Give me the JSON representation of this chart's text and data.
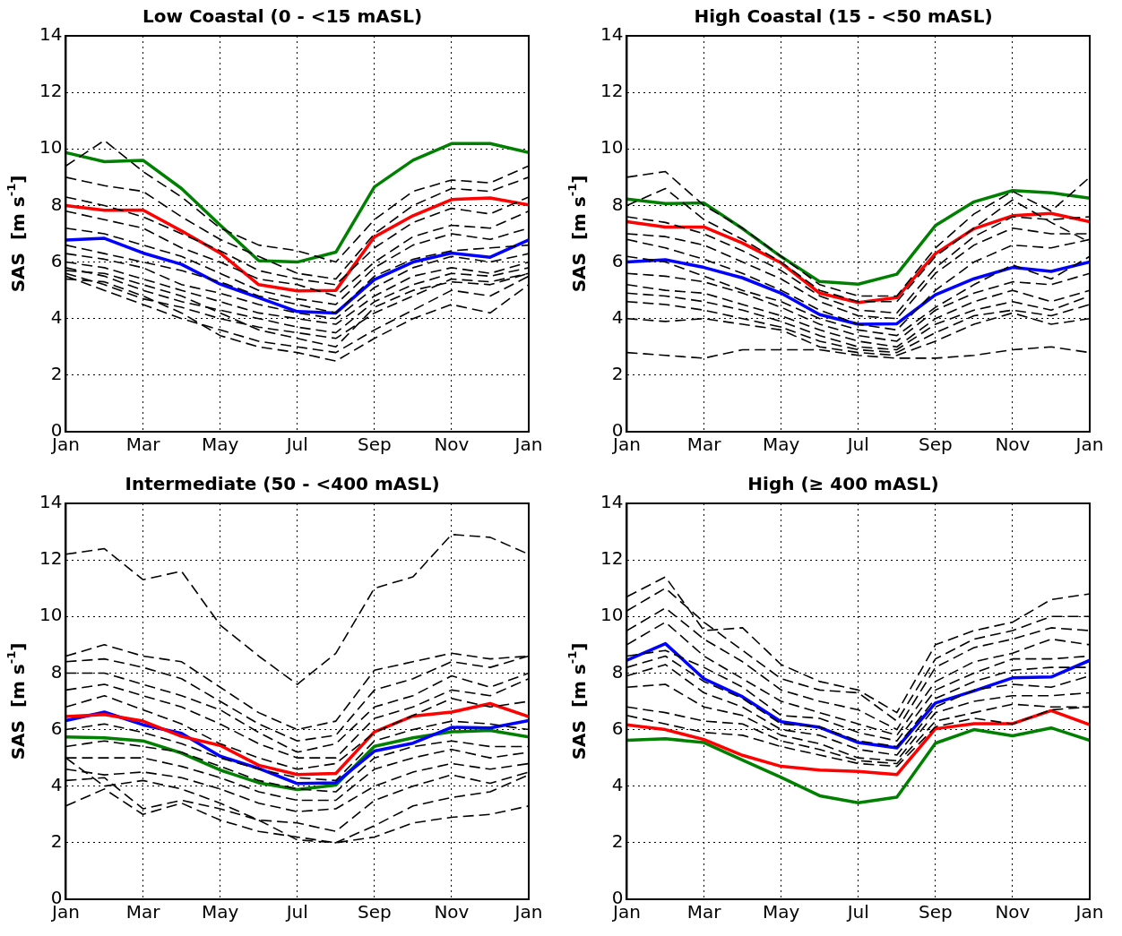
{
  "chart_data": [
    {
      "type": "line",
      "title": "Low Coastal (0 - <15 mASL)",
      "ylabel": "SAS  [m s$^{-1}$]",
      "categories": [
        "Jan",
        null,
        "Mar",
        null,
        "May",
        null,
        "Jul",
        null,
        "Sep",
        null,
        "Nov",
        null,
        "Jan"
      ],
      "ylim": [
        0,
        14
      ],
      "yticks": [
        0,
        2,
        4,
        6,
        8,
        10,
        12,
        14
      ],
      "grid": true,
      "legend": false,
      "series": [
        {
          "color": "#000000",
          "line_style": "dashed",
          "values": [
            9.4,
            10.3,
            9.2,
            8.3,
            7.2,
            6.6,
            6.4,
            6.0,
            7.5,
            8.5,
            8.9,
            8.8,
            9.4
          ]
        },
        {
          "color": "#000000",
          "line_style": "dashed",
          "values": [
            9.0,
            8.7,
            8.5,
            7.6,
            6.8,
            6.2,
            5.6,
            5.4,
            7.0,
            8.0,
            8.6,
            8.5,
            9.0
          ]
        },
        {
          "color": "#000000",
          "line_style": "dashed",
          "values": [
            8.3,
            8.0,
            7.6,
            7.0,
            6.4,
            5.7,
            5.4,
            5.2,
            6.5,
            7.4,
            7.9,
            7.7,
            8.3
          ]
        },
        {
          "color": "#000000",
          "line_style": "dashed",
          "values": [
            7.8,
            7.5,
            7.2,
            6.5,
            6.0,
            5.4,
            5.2,
            4.8,
            6.0,
            6.9,
            7.3,
            7.2,
            7.8
          ]
        },
        {
          "color": "#000000",
          "line_style": "dashed",
          "values": [
            7.2,
            7.0,
            6.6,
            6.2,
            5.6,
            5.0,
            4.7,
            4.5,
            5.8,
            6.6,
            7.0,
            6.8,
            7.2
          ]
        },
        {
          "color": "#000000",
          "line_style": "dashed",
          "values": [
            6.6,
            6.3,
            6.0,
            5.7,
            5.3,
            4.8,
            4.5,
            4.2,
            5.5,
            6.1,
            6.4,
            6.5,
            6.6
          ]
        },
        {
          "color": "#000000",
          "line_style": "dashed",
          "values": [
            6.3,
            6.1,
            5.8,
            5.2,
            4.9,
            4.5,
            4.2,
            4.0,
            5.1,
            5.8,
            6.2,
            6.0,
            6.3
          ]
        },
        {
          "color": "#000000",
          "line_style": "dashed",
          "values": [
            6.0,
            5.8,
            5.4,
            5.0,
            4.6,
            4.2,
            4.0,
            3.8,
            4.8,
            5.5,
            5.8,
            5.6,
            6.0
          ]
        },
        {
          "color": "#000000",
          "line_style": "dashed",
          "values": [
            5.8,
            5.5,
            5.0,
            4.6,
            4.3,
            4.0,
            3.7,
            3.5,
            4.6,
            5.2,
            5.6,
            5.5,
            5.8
          ]
        },
        {
          "color": "#000000",
          "line_style": "dashed",
          "values": [
            5.6,
            5.2,
            4.7,
            4.4,
            4.0,
            3.7,
            3.5,
            3.3,
            4.2,
            4.8,
            5.4,
            5.3,
            5.6
          ]
        },
        {
          "color": "#000000",
          "line_style": "dashed",
          "values": [
            5.5,
            5.0,
            4.5,
            4.0,
            3.6,
            3.2,
            3.0,
            2.8,
            3.6,
            4.3,
            5.0,
            4.8,
            5.5
          ]
        },
        {
          "color": "#000000",
          "line_style": "dashed",
          "values": [
            5.4,
            5.3,
            4.8,
            4.2,
            3.4,
            3.0,
            2.8,
            2.5,
            3.3,
            4.0,
            4.5,
            4.2,
            5.2
          ]
        },
        {
          "color": "#000000",
          "line_style": "dashed",
          "values": [
            5.7,
            5.6,
            5.2,
            4.8,
            4.2,
            3.6,
            3.3,
            3.0,
            4.4,
            5.0,
            5.3,
            5.2,
            5.6
          ]
        },
        {
          "color": "#008000",
          "line_style": "solid",
          "values": [
            9.87,
            9.55,
            9.6,
            8.6,
            7.31,
            6.05,
            6.0,
            6.35,
            8.66,
            9.6,
            10.19,
            10.19,
            9.87
          ]
        },
        {
          "color": "#ff0000",
          "line_style": "solid",
          "values": [
            8.0,
            7.83,
            7.84,
            7.1,
            6.32,
            5.2,
            4.98,
            5.0,
            6.89,
            7.64,
            8.21,
            8.27,
            8.02
          ]
        },
        {
          "color": "#0000ff",
          "line_style": "solid",
          "values": [
            6.78,
            6.84,
            6.32,
            5.92,
            5.22,
            4.74,
            4.25,
            4.2,
            5.38,
            6.0,
            6.32,
            6.17,
            6.78
          ]
        }
      ]
    },
    {
      "type": "line",
      "title": "High Coastal (15 - <50 mASL)",
      "ylabel": "SAS  [m s$^{-1}$]",
      "categories": [
        "Jan",
        null,
        "Mar",
        null,
        "May",
        null,
        "Jul",
        null,
        "Sep",
        null,
        "Nov",
        null,
        "Jan"
      ],
      "ylim": [
        0,
        14
      ],
      "yticks": [
        0,
        2,
        4,
        6,
        8,
        10,
        12,
        14
      ],
      "grid": true,
      "legend": false,
      "series": [
        {
          "color": "#000000",
          "line_style": "dashed",
          "values": [
            9.0,
            9.2,
            8.0,
            7.2,
            6.2,
            5.2,
            4.8,
            4.8,
            6.5,
            7.7,
            8.5,
            7.8,
            9.0
          ]
        },
        {
          "color": "#000000",
          "line_style": "dashed",
          "values": [
            8.0,
            8.6,
            7.5,
            6.8,
            6.0,
            5.0,
            4.6,
            4.6,
            6.2,
            7.2,
            8.2,
            7.4,
            6.7
          ]
        },
        {
          "color": "#000000",
          "line_style": "dashed",
          "values": [
            7.6,
            7.4,
            7.0,
            6.4,
            5.7,
            4.8,
            4.3,
            4.2,
            5.8,
            6.9,
            7.6,
            7.5,
            7.6
          ]
        },
        {
          "color": "#000000",
          "line_style": "dashed",
          "values": [
            7.0,
            6.9,
            6.6,
            6.0,
            5.4,
            4.6,
            4.1,
            4.0,
            5.6,
            6.6,
            7.2,
            7.0,
            7.0
          ]
        },
        {
          "color": "#000000",
          "line_style": "dashed",
          "values": [
            6.8,
            6.5,
            6.1,
            5.6,
            5.0,
            4.3,
            3.8,
            3.6,
            5.0,
            6.0,
            6.6,
            6.5,
            6.8
          ]
        },
        {
          "color": "#000000",
          "line_style": "dashed",
          "values": [
            6.2,
            6.0,
            5.5,
            5.0,
            4.6,
            4.0,
            3.6,
            3.4,
            4.4,
            5.2,
            5.9,
            5.4,
            6.2
          ]
        },
        {
          "color": "#000000",
          "line_style": "dashed",
          "values": [
            5.6,
            5.5,
            5.3,
            4.9,
            4.4,
            3.8,
            3.4,
            3.2,
            4.3,
            4.9,
            5.3,
            5.2,
            5.6
          ]
        },
        {
          "color": "#000000",
          "line_style": "dashed",
          "values": [
            5.2,
            5.0,
            4.9,
            4.5,
            4.1,
            3.6,
            3.2,
            3.0,
            4.0,
            4.6,
            5.0,
            4.6,
            5.0
          ]
        },
        {
          "color": "#000000",
          "line_style": "dashed",
          "values": [
            4.9,
            4.8,
            4.6,
            4.3,
            3.9,
            3.4,
            3.0,
            2.9,
            3.8,
            4.3,
            4.6,
            4.3,
            4.8
          ]
        },
        {
          "color": "#000000",
          "line_style": "dashed",
          "values": [
            4.6,
            4.5,
            4.3,
            4.0,
            3.7,
            3.2,
            2.9,
            2.8,
            3.5,
            4.1,
            4.3,
            4.1,
            4.5
          ]
        },
        {
          "color": "#000000",
          "line_style": "dashed",
          "values": [
            4.0,
            3.9,
            4.0,
            3.8,
            3.6,
            3.0,
            2.8,
            2.7,
            3.2,
            3.8,
            4.2,
            3.8,
            4.0
          ]
        },
        {
          "color": "#000000",
          "line_style": "dashed",
          "values": [
            2.8,
            2.7,
            2.6,
            2.9,
            2.9,
            2.9,
            2.7,
            2.6,
            2.6,
            2.7,
            2.9,
            3.0,
            2.8
          ]
        },
        {
          "color": "#008000",
          "line_style": "solid",
          "values": [
            8.23,
            8.07,
            8.09,
            7.18,
            6.19,
            5.31,
            5.22,
            5.57,
            7.29,
            8.13,
            8.53,
            8.45,
            8.26
          ]
        },
        {
          "color": "#ff0000",
          "line_style": "solid",
          "values": [
            7.43,
            7.24,
            7.24,
            6.67,
            5.97,
            4.9,
            4.57,
            4.74,
            6.3,
            7.18,
            7.64,
            7.72,
            7.43
          ]
        },
        {
          "color": "#0000ff",
          "line_style": "solid",
          "values": [
            6.0,
            6.08,
            5.81,
            5.44,
            4.9,
            4.14,
            3.8,
            3.82,
            4.84,
            5.41,
            5.81,
            5.67,
            6.0
          ]
        }
      ]
    },
    {
      "type": "line",
      "title": "Intermediate (50 - <400 mASL)",
      "ylabel": "SAS  [m s$^{-1}$]",
      "categories": [
        "Jan",
        null,
        "Mar",
        null,
        "May",
        null,
        "Jul",
        null,
        "Sep",
        null,
        "Nov",
        null,
        "Jan"
      ],
      "ylim": [
        0,
        14
      ],
      "yticks": [
        0,
        2,
        4,
        6,
        8,
        10,
        12,
        14
      ],
      "grid": true,
      "legend": false,
      "series": [
        {
          "color": "#000000",
          "line_style": "dashed",
          "values": [
            12.2,
            12.4,
            11.3,
            11.6,
            9.7,
            8.6,
            7.6,
            8.7,
            11.0,
            11.4,
            12.9,
            12.8,
            12.2
          ]
        },
        {
          "color": "#000000",
          "line_style": "dashed",
          "values": [
            8.6,
            9.0,
            8.6,
            8.4,
            7.5,
            6.6,
            6.0,
            6.3,
            8.1,
            8.4,
            8.7,
            8.5,
            8.6
          ]
        },
        {
          "color": "#000000",
          "line_style": "dashed",
          "values": [
            8.4,
            8.5,
            8.2,
            7.8,
            7.0,
            6.2,
            5.6,
            5.8,
            7.4,
            7.8,
            8.4,
            8.2,
            8.6
          ]
        },
        {
          "color": "#000000",
          "line_style": "dashed",
          "values": [
            8.0,
            8.0,
            7.6,
            7.2,
            6.7,
            5.9,
            5.2,
            5.5,
            6.8,
            7.2,
            7.9,
            7.5,
            8.0
          ]
        },
        {
          "color": "#000000",
          "line_style": "dashed",
          "values": [
            7.4,
            7.6,
            7.2,
            6.8,
            6.2,
            5.5,
            5.0,
            5.0,
            6.4,
            6.8,
            7.4,
            7.2,
            7.8
          ]
        },
        {
          "color": "#000000",
          "line_style": "dashed",
          "values": [
            6.8,
            7.2,
            6.7,
            6.2,
            5.5,
            5.0,
            4.6,
            4.8,
            5.9,
            6.5,
            7.1,
            6.8,
            7.0
          ]
        },
        {
          "color": "#000000",
          "line_style": "dashed",
          "values": [
            6.0,
            6.2,
            5.9,
            5.5,
            5.0,
            4.6,
            4.3,
            4.2,
            5.6,
            6.0,
            6.3,
            6.2,
            6.0
          ]
        },
        {
          "color": "#000000",
          "line_style": "dashed",
          "values": [
            5.4,
            5.6,
            5.4,
            5.2,
            4.7,
            4.2,
            3.9,
            3.8,
            5.0,
            5.4,
            5.6,
            5.4,
            5.4
          ]
        },
        {
          "color": "#000000",
          "line_style": "dashed",
          "values": [
            5.0,
            5.0,
            5.0,
            4.7,
            4.3,
            3.8,
            3.5,
            3.5,
            4.6,
            5.0,
            5.3,
            5.0,
            5.2
          ]
        },
        {
          "color": "#000000",
          "line_style": "dashed",
          "values": [
            4.6,
            4.4,
            4.5,
            4.3,
            3.9,
            3.4,
            3.1,
            3.2,
            4.0,
            4.5,
            4.8,
            4.6,
            4.8
          ]
        },
        {
          "color": "#000000",
          "line_style": "dashed",
          "values": [
            4.2,
            4.3,
            3.2,
            3.5,
            3.2,
            2.8,
            2.7,
            2.4,
            3.5,
            4.0,
            4.4,
            4.1,
            4.5
          ]
        },
        {
          "color": "#000000",
          "line_style": "dashed",
          "values": [
            3.3,
            3.9,
            3.0,
            3.4,
            2.8,
            2.4,
            2.2,
            2.0,
            2.2,
            2.7,
            2.9,
            3.0,
            3.3
          ]
        },
        {
          "color": "#000000",
          "line_style": "dashed",
          "values": [
            5.0,
            4.0,
            4.2,
            3.9,
            3.4,
            2.8,
            2.1,
            2.0,
            2.6,
            3.3,
            3.6,
            3.8,
            4.4
          ]
        },
        {
          "color": "#ff0000",
          "line_style": "solid",
          "values": [
            6.46,
            6.53,
            6.3,
            5.76,
            5.44,
            4.74,
            4.41,
            4.45,
            5.92,
            6.48,
            6.62,
            6.92,
            6.46
          ]
        },
        {
          "color": "#0000ff",
          "line_style": "solid",
          "values": [
            6.32,
            6.62,
            6.17,
            5.87,
            5.06,
            4.63,
            4.09,
            4.12,
            5.24,
            5.52,
            6.08,
            6.06,
            6.32
          ]
        },
        {
          "color": "#008000",
          "line_style": "solid",
          "values": [
            5.74,
            5.71,
            5.6,
            5.17,
            4.57,
            4.12,
            3.88,
            4.04,
            5.41,
            5.71,
            5.92,
            5.97,
            5.74
          ]
        }
      ]
    },
    {
      "type": "line",
      "title": "High (≥ 400 mASL)",
      "ylabel": "SAS  [m s$^{-1}$]",
      "categories": [
        "Jan",
        null,
        "Mar",
        null,
        "May",
        null,
        "Jul",
        null,
        "Sep",
        null,
        "Nov",
        null,
        "Jan"
      ],
      "ylim": [
        0,
        14
      ],
      "yticks": [
        0,
        2,
        4,
        6,
        8,
        10,
        12,
        14
      ],
      "grid": true,
      "legend": false,
      "series": [
        {
          "color": "#000000",
          "line_style": "dashed",
          "values": [
            10.7,
            11.4,
            9.5,
            9.6,
            8.3,
            7.7,
            7.4,
            6.6,
            9.0,
            9.5,
            9.8,
            10.6,
            10.8
          ]
        },
        {
          "color": "#000000",
          "line_style": "dashed",
          "values": [
            10.2,
            11.0,
            9.8,
            8.8,
            7.8,
            7.4,
            7.3,
            6.3,
            8.5,
            9.2,
            9.5,
            10.0,
            10.0
          ]
        },
        {
          "color": "#000000",
          "line_style": "dashed",
          "values": [
            9.5,
            10.3,
            9.2,
            8.4,
            7.4,
            7.0,
            6.7,
            6.0,
            8.2,
            8.9,
            9.2,
            9.6,
            9.5
          ]
        },
        {
          "color": "#000000",
          "line_style": "dashed",
          "values": [
            9.0,
            9.8,
            8.6,
            7.8,
            7.0,
            6.6,
            6.2,
            5.8,
            7.7,
            8.4,
            8.7,
            9.2,
            9.0
          ]
        },
        {
          "color": "#000000",
          "line_style": "dashed",
          "values": [
            8.6,
            8.8,
            8.2,
            7.5,
            6.5,
            6.4,
            5.9,
            5.6,
            7.4,
            8.0,
            8.5,
            8.5,
            8.6
          ]
        },
        {
          "color": "#000000",
          "line_style": "dashed",
          "values": [
            8.2,
            8.6,
            7.7,
            7.1,
            6.2,
            6.1,
            5.6,
            5.4,
            7.1,
            7.7,
            8.1,
            8.2,
            8.2
          ]
        },
        {
          "color": "#000000",
          "line_style": "dashed",
          "values": [
            7.9,
            8.3,
            7.3,
            6.8,
            6.0,
            5.8,
            5.3,
            5.1,
            6.8,
            7.4,
            7.6,
            7.5,
            7.9
          ]
        },
        {
          "color": "#000000",
          "line_style": "dashed",
          "values": [
            7.5,
            7.6,
            6.8,
            6.5,
            5.8,
            5.5,
            5.0,
            4.9,
            6.6,
            7.0,
            7.2,
            7.2,
            7.3
          ]
        },
        {
          "color": "#000000",
          "line_style": "dashed",
          "values": [
            6.8,
            6.6,
            6.3,
            6.2,
            5.6,
            5.3,
            4.9,
            4.8,
            6.3,
            6.6,
            6.9,
            6.8,
            6.8
          ]
        },
        {
          "color": "#000000",
          "line_style": "dashed",
          "values": [
            6.5,
            6.2,
            5.9,
            5.8,
            5.4,
            5.1,
            4.8,
            4.7,
            6.1,
            6.4,
            6.2,
            6.7,
            6.8
          ]
        },
        {
          "color": "#0000ff",
          "line_style": "solid",
          "values": [
            8.45,
            9.04,
            7.8,
            7.16,
            6.28,
            6.08,
            5.54,
            5.35,
            6.94,
            7.37,
            7.83,
            7.86,
            8.45
          ]
        },
        {
          "color": "#ff0000",
          "line_style": "solid",
          "values": [
            6.17,
            6.0,
            5.65,
            5.09,
            4.7,
            4.57,
            4.52,
            4.41,
            6.03,
            6.21,
            6.21,
            6.67,
            6.17
          ]
        },
        {
          "color": "#008000",
          "line_style": "solid",
          "values": [
            5.62,
            5.68,
            5.54,
            4.92,
            4.31,
            3.66,
            3.41,
            3.61,
            5.52,
            6.0,
            5.78,
            6.06,
            5.62
          ]
        }
      ]
    }
  ]
}
